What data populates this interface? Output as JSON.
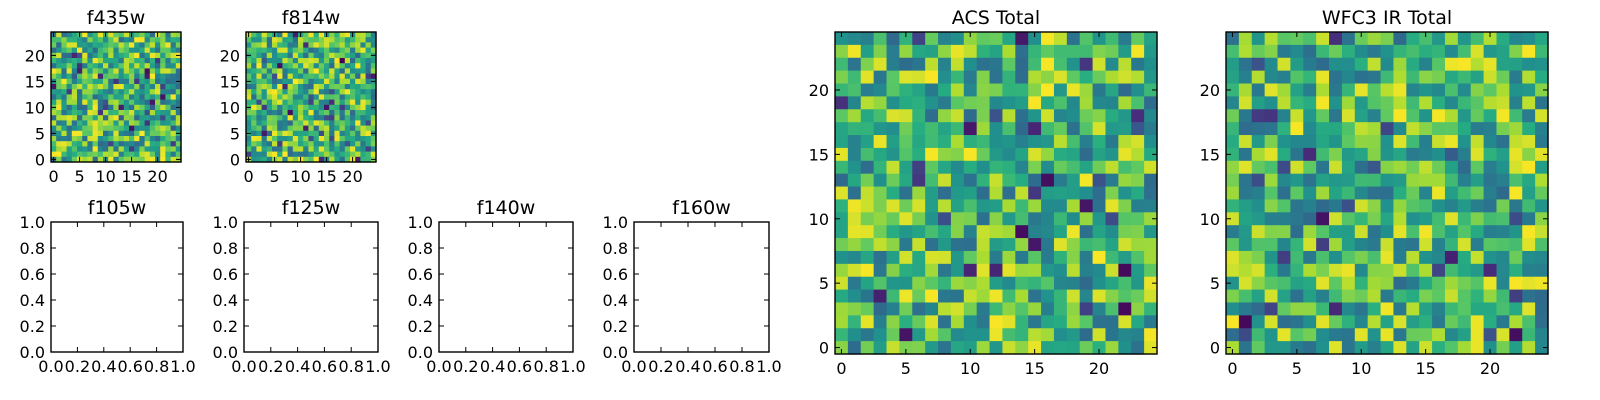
{
  "figure": {
    "panels": [
      {
        "id": "f435w",
        "title": "f435w"
      },
      {
        "id": "f814w",
        "title": "f814w"
      },
      {
        "id": "f105w",
        "title": "f105w"
      },
      {
        "id": "f125w",
        "title": "f125w"
      },
      {
        "id": "f140w",
        "title": "f140w"
      },
      {
        "id": "f160w",
        "title": "f160w"
      },
      {
        "id": "acs-total",
        "title": "ACS Total"
      },
      {
        "id": "wfc3-ir-total",
        "title": "WFC3 IR Total"
      }
    ]
  },
  "chart_data": [
    {
      "type": "heatmap",
      "title": "f435w",
      "colormap": "viridis",
      "grid_size": [
        25,
        25
      ],
      "xlim": [
        -0.5,
        24.5
      ],
      "ylim": [
        -0.5,
        24.5
      ],
      "x_ticks": [
        0,
        5,
        10,
        15,
        20
      ],
      "y_ticks": [
        0,
        5,
        10,
        15,
        20
      ],
      "x_tick_labels": [
        "0",
        "5",
        "10",
        "15",
        "20"
      ],
      "y_tick_labels": [
        "0",
        "5",
        "10",
        "15",
        "20"
      ],
      "values": "random noise"
    },
    {
      "type": "heatmap",
      "title": "f814w",
      "colormap": "viridis",
      "grid_size": [
        25,
        25
      ],
      "xlim": [
        -0.5,
        24.5
      ],
      "ylim": [
        -0.5,
        24.5
      ],
      "x_ticks": [
        0,
        5,
        10,
        15,
        20
      ],
      "y_ticks": [
        0,
        5,
        10,
        15,
        20
      ],
      "x_tick_labels": [
        "0",
        "5",
        "10",
        "15",
        "20"
      ],
      "y_tick_labels": [
        "0",
        "5",
        "10",
        "15",
        "20"
      ],
      "values": "random noise"
    },
    {
      "type": "empty",
      "title": "f105w",
      "xlim": [
        0,
        1
      ],
      "ylim": [
        0,
        1
      ],
      "x_tick_labels": [
        "0.0",
        "0.2",
        "0.4",
        "0.6",
        "0.8",
        "1.0"
      ],
      "y_tick_labels": [
        "0.0",
        "0.2",
        "0.4",
        "0.6",
        "0.8",
        "1.0"
      ]
    },
    {
      "type": "empty",
      "title": "f125w",
      "xlim": [
        0,
        1
      ],
      "ylim": [
        0,
        1
      ],
      "x_tick_labels": [
        "0.0",
        "0.2",
        "0.4",
        "0.6",
        "0.8",
        "1.0"
      ],
      "y_tick_labels": [
        "0.0",
        "0.2",
        "0.4",
        "0.6",
        "0.8",
        "1.0"
      ]
    },
    {
      "type": "empty",
      "title": "f140w",
      "xlim": [
        0,
        1
      ],
      "ylim": [
        0,
        1
      ],
      "x_tick_labels": [
        "0.0",
        "0.2",
        "0.4",
        "0.6",
        "0.8",
        "1.0"
      ],
      "y_tick_labels": [
        "0.0",
        "0.2",
        "0.4",
        "0.6",
        "0.8",
        "1.0"
      ]
    },
    {
      "type": "empty",
      "title": "f160w",
      "xlim": [
        0,
        1
      ],
      "ylim": [
        0,
        1
      ],
      "x_tick_labels": [
        "0.0",
        "0.2",
        "0.4",
        "0.6",
        "0.8",
        "1.0"
      ],
      "y_tick_labels": [
        "0.0",
        "0.2",
        "0.4",
        "0.6",
        "0.8",
        "1.0"
      ]
    },
    {
      "type": "heatmap",
      "title": "ACS Total",
      "colormap": "viridis",
      "grid_size": [
        25,
        25
      ],
      "xlim": [
        -0.5,
        24.5
      ],
      "ylim": [
        -0.5,
        24.5
      ],
      "x_ticks": [
        0,
        5,
        10,
        15,
        20
      ],
      "y_ticks": [
        0,
        5,
        10,
        15,
        20
      ],
      "x_tick_labels": [
        "0",
        "5",
        "10",
        "15",
        "20"
      ],
      "y_tick_labels": [
        "0",
        "5",
        "10",
        "15",
        "20"
      ],
      "values": "random noise"
    },
    {
      "type": "heatmap",
      "title": "WFC3 IR Total",
      "colormap": "viridis",
      "grid_size": [
        25,
        25
      ],
      "xlim": [
        -0.5,
        24.5
      ],
      "ylim": [
        -0.5,
        24.5
      ],
      "x_ticks": [
        0,
        5,
        10,
        15,
        20
      ],
      "y_ticks": [
        0,
        5,
        10,
        15,
        20
      ],
      "x_tick_labels": [
        "0",
        "5",
        "10",
        "15",
        "20"
      ],
      "y_tick_labels": [
        "0",
        "5",
        "10",
        "15",
        "20"
      ],
      "values": "random noise"
    }
  ]
}
